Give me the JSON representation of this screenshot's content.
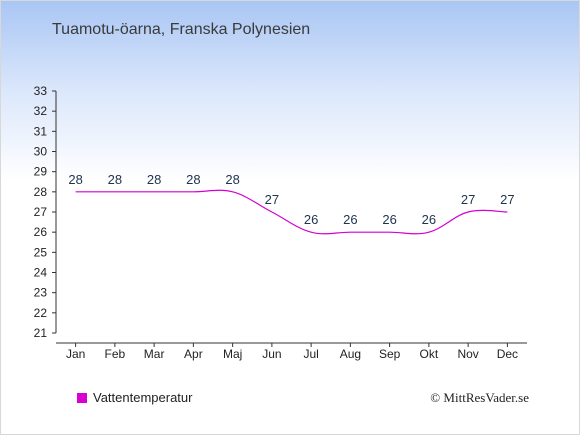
{
  "location_title": "Tuamotu-öarna, Franska Polynesien",
  "chart_data": {
    "type": "line",
    "title": "",
    "xlabel": "",
    "ylabel": "",
    "categories": [
      "Jan",
      "Feb",
      "Mar",
      "Apr",
      "Maj",
      "Jun",
      "Jul",
      "Aug",
      "Sep",
      "Okt",
      "Nov",
      "Dec"
    ],
    "series": [
      {
        "name": "Vattentemperatur",
        "values": [
          28,
          28,
          28,
          28,
          28,
          27,
          26,
          26,
          26,
          26,
          27,
          27
        ],
        "color": "#d400d4"
      }
    ],
    "ylim": [
      21,
      33
    ],
    "yticks": [
      21,
      22,
      23,
      24,
      25,
      26,
      27,
      28,
      29,
      30,
      31,
      32,
      33
    ],
    "grid": false,
    "legend": "bottom-left"
  },
  "legend": {
    "label": "Vattentemperatur",
    "color": "#d400d4"
  },
  "credit": "© MittResVader.se"
}
